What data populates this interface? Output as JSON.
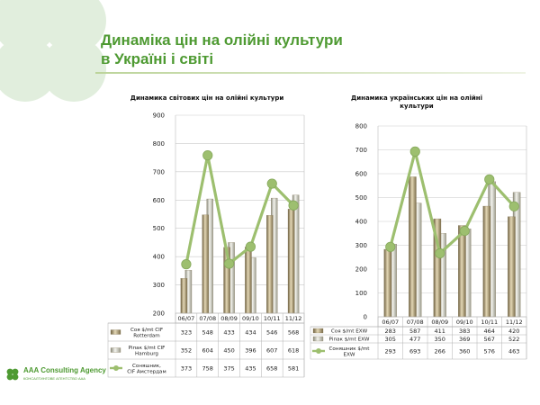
{
  "slide": {
    "title_line1": "Динаміка цін на олійні культури",
    "title_line2": "в Україні і світі",
    "logo_name": "AAA Consulting Agency",
    "logo_sub": "КОНСАЛТИНГОВЕ АГЕНТСТВО ААА"
  },
  "colors": {
    "title": "#4e9a32",
    "line": "#9dbf6f",
    "marker": "#9dbf6f"
  },
  "chart_data": [
    {
      "type": "bar",
      "title": "Динамика світових цін на олійні культури",
      "categories": [
        "06/07",
        "07/08",
        "08/09",
        "09/10",
        "10/11",
        "11/12"
      ],
      "ylim": [
        200,
        900
      ],
      "yticks": [
        200,
        300,
        400,
        500,
        600,
        700,
        800,
        900
      ],
      "grid": true,
      "series": [
        {
          "name": "Соя $/mt   CIF Rotterdam",
          "kind": "bar",
          "values": [
            323,
            548,
            433,
            434,
            546,
            568
          ]
        },
        {
          "name": "Ріпак $/mt    CIF Hamburg",
          "kind": "bar",
          "values": [
            352,
            604,
            450,
            396,
            607,
            618
          ]
        },
        {
          "name": "Соняшник, CIF Амстердам",
          "kind": "line",
          "values": [
            373,
            758,
            375,
            435,
            658,
            581
          ]
        }
      ]
    },
    {
      "type": "bar",
      "title": "Динамика українських цін на олійні культури",
      "categories": [
        "06/07",
        "07/08",
        "08/09",
        "09/10",
        "10/11",
        "11/12"
      ],
      "ylim": [
        0,
        800
      ],
      "yticks": [
        0,
        100,
        200,
        300,
        400,
        500,
        600,
        700,
        800
      ],
      "grid": true,
      "series": [
        {
          "name": "Соя $/mt EXW",
          "kind": "bar",
          "values": [
            283,
            587,
            411,
            383,
            464,
            420
          ]
        },
        {
          "name": "Ріпак $/mt EXW",
          "kind": "bar",
          "values": [
            305,
            477,
            350,
            369,
            567,
            522
          ]
        },
        {
          "name": "Соняшник $/mt EXW",
          "kind": "line",
          "values": [
            293,
            693,
            266,
            360,
            576,
            463
          ]
        }
      ]
    }
  ]
}
